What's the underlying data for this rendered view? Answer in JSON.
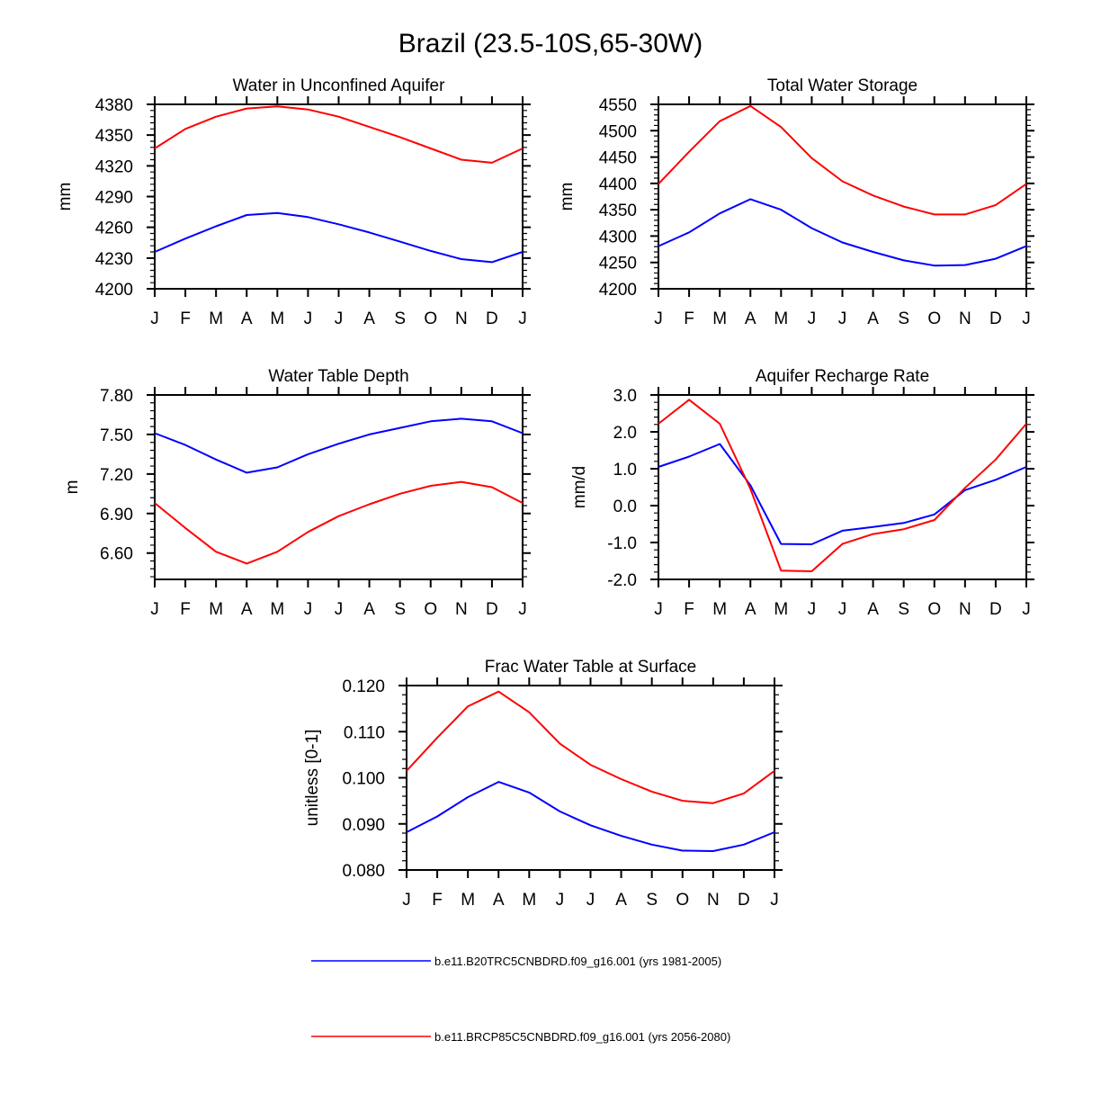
{
  "page": {
    "title": "Brazil (23.5-10S,65-30W)",
    "months": [
      "J",
      "F",
      "M",
      "A",
      "M",
      "J",
      "J",
      "A",
      "S",
      "O",
      "N",
      "D",
      "J"
    ]
  },
  "legend": [
    {
      "label": "b.e11.B20TRC5CNBDRD.f09_g16.001 (yrs 1981-2005)",
      "color": "#0000ff"
    },
    {
      "label": "b.e11.BRCP85C5CNBDRD.f09_g16.001 (yrs 2056-2080)",
      "color": "#ff0000"
    }
  ],
  "chart_data": [
    {
      "type": "line",
      "title": "Water in Unconfined Aquifer",
      "ylabel": "mm",
      "ylim": [
        4200,
        4380
      ],
      "yticks": [
        4200,
        4230,
        4260,
        4290,
        4320,
        4350,
        4380
      ],
      "ytick_labels": [
        "4200",
        "4230",
        "4260",
        "4290",
        "4320",
        "4350",
        "4380"
      ],
      "x": [
        "J",
        "F",
        "M",
        "A",
        "M",
        "J",
        "J",
        "A",
        "S",
        "O",
        "N",
        "D",
        "J"
      ],
      "series": [
        {
          "name": "b.e11.B20TRC5CNBDRD.f09_g16.001 (yrs 1981-2005)",
          "color": "#0000ff",
          "values": [
            4236,
            4249,
            4261,
            4272,
            4274,
            4270,
            4263,
            4255,
            4246,
            4237,
            4229,
            4226,
            4236
          ]
        },
        {
          "name": "b.e11.BRCP85C5CNBDRD.f09_g16.001 (yrs 2056-2080)",
          "color": "#ff0000",
          "values": [
            4337,
            4356,
            4368,
            4376,
            4378,
            4375,
            4368,
            4358,
            4348,
            4337,
            4326,
            4323,
            4337
          ]
        }
      ]
    },
    {
      "type": "line",
      "title": "Total Water Storage",
      "ylabel": "mm",
      "ylim": [
        4200,
        4550
      ],
      "yticks": [
        4200,
        4250,
        4300,
        4350,
        4400,
        4450,
        4500,
        4550
      ],
      "ytick_labels": [
        "4200",
        "4250",
        "4300",
        "4350",
        "4400",
        "4450",
        "4500",
        "4550"
      ],
      "x": [
        "J",
        "F",
        "M",
        "A",
        "M",
        "J",
        "J",
        "A",
        "S",
        "O",
        "N",
        "D",
        "J"
      ],
      "series": [
        {
          "name": "b.e11.B20TRC5CNBDRD.f09_g16.001 (yrs 1981-2005)",
          "color": "#0000ff",
          "values": [
            4281,
            4307,
            4343,
            4370,
            4350,
            4315,
            4288,
            4270,
            4254,
            4244,
            4245,
            4257,
            4281
          ]
        },
        {
          "name": "b.e11.BRCP85C5CNBDRD.f09_g16.001 (yrs 2056-2080)",
          "color": "#ff0000",
          "values": [
            4399,
            4460,
            4518,
            4547,
            4507,
            4448,
            4404,
            4377,
            4356,
            4341,
            4341,
            4359,
            4399
          ]
        }
      ]
    },
    {
      "type": "line",
      "title": "Water Table Depth",
      "ylabel": "m",
      "ylim": [
        6.4,
        7.8
      ],
      "yticks": [
        6.6,
        6.9,
        7.2,
        7.5,
        7.8
      ],
      "ytick_labels": [
        "6.60",
        "6.90",
        "7.20",
        "7.50",
        "7.80"
      ],
      "x": [
        "J",
        "F",
        "M",
        "A",
        "M",
        "J",
        "J",
        "A",
        "S",
        "O",
        "N",
        "D",
        "J"
      ],
      "series": [
        {
          "name": "b.e11.B20TRC5CNBDRD.f09_g16.001 (yrs 1981-2005)",
          "color": "#0000ff",
          "values": [
            7.51,
            7.42,
            7.31,
            7.21,
            7.25,
            7.35,
            7.43,
            7.5,
            7.55,
            7.6,
            7.62,
            7.6,
            7.51
          ]
        },
        {
          "name": "b.e11.BRCP85C5CNBDRD.f09_g16.001 (yrs 2056-2080)",
          "color": "#ff0000",
          "values": [
            6.98,
            6.79,
            6.61,
            6.52,
            6.61,
            6.76,
            6.88,
            6.97,
            7.05,
            7.11,
            7.14,
            7.1,
            6.98
          ]
        }
      ]
    },
    {
      "type": "line",
      "title": "Aquifer Recharge Rate",
      "ylabel": "mm/d",
      "ylim": [
        -2.0,
        3.0
      ],
      "yticks": [
        -2.0,
        -1.0,
        0.0,
        1.0,
        2.0,
        3.0
      ],
      "ytick_labels": [
        "-2.0",
        "-1.0",
        "0.0",
        "1.0",
        "2.0",
        "3.0"
      ],
      "x": [
        "J",
        "F",
        "M",
        "A",
        "M",
        "J",
        "J",
        "A",
        "S",
        "O",
        "N",
        "D",
        "J"
      ],
      "series": [
        {
          "name": "b.e11.B20TRC5CNBDRD.f09_g16.001 (yrs 1981-2005)",
          "color": "#0000ff",
          "values": [
            1.05,
            1.33,
            1.67,
            0.55,
            -1.04,
            -1.05,
            -0.68,
            -0.58,
            -0.47,
            -0.24,
            0.42,
            0.7,
            1.05
          ]
        },
        {
          "name": "b.e11.BRCP85C5CNBDRD.f09_g16.001 (yrs 2056-2080)",
          "color": "#ff0000",
          "values": [
            2.22,
            2.87,
            2.22,
            0.45,
            -1.76,
            -1.78,
            -1.04,
            -0.77,
            -0.64,
            -0.39,
            0.48,
            1.25,
            2.22
          ]
        }
      ]
    },
    {
      "type": "line",
      "title": "Frac Water Table at Surface",
      "ylabel": "unitless [0-1]",
      "ylim": [
        0.08,
        0.12
      ],
      "yticks": [
        0.08,
        0.09,
        0.1,
        0.11,
        0.12
      ],
      "ytick_labels": [
        "0.080",
        "0.090",
        "0.100",
        "0.110",
        "0.120"
      ],
      "x": [
        "J",
        "F",
        "M",
        "A",
        "M",
        "J",
        "J",
        "A",
        "S",
        "O",
        "N",
        "D",
        "J"
      ],
      "series": [
        {
          "name": "b.e11.B20TRC5CNBDRD.f09_g16.001 (yrs 1981-2005)",
          "color": "#0000ff",
          "values": [
            0.0882,
            0.0916,
            0.0958,
            0.0991,
            0.0968,
            0.0927,
            0.0897,
            0.0874,
            0.0855,
            0.0842,
            0.0841,
            0.0855,
            0.0882
          ]
        },
        {
          "name": "b.e11.BRCP85C5CNBDRD.f09_g16.001 (yrs 2056-2080)",
          "color": "#ff0000",
          "values": [
            0.1015,
            0.1087,
            0.1155,
            0.1187,
            0.1142,
            0.1074,
            0.1028,
            0.0997,
            0.097,
            0.095,
            0.0945,
            0.0966,
            0.1015
          ]
        }
      ]
    }
  ]
}
